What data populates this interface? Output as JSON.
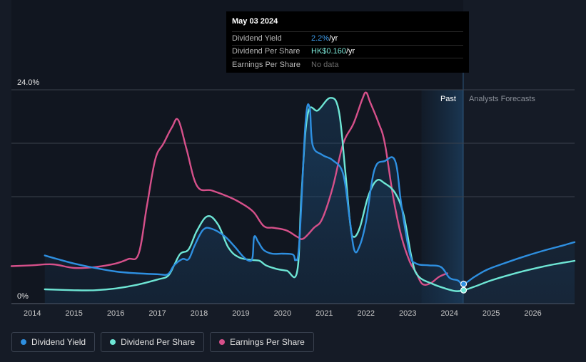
{
  "tooltip": {
    "date": "May 03 2024",
    "rows": [
      {
        "label": "Dividend Yield",
        "value": "2.2%",
        "unit": " /yr"
      },
      {
        "label": "Dividend Per Share",
        "value": "HK$0.160",
        "unit": " /yr"
      },
      {
        "label": "Earnings Per Share",
        "value": "No data",
        "unit": ""
      }
    ]
  },
  "labels": {
    "past": "Past",
    "forecast": "Analysts Forecasts"
  },
  "legend": [
    {
      "label": "Dividend Yield",
      "color": "#2e8fe0"
    },
    {
      "label": "Dividend Per Share",
      "color": "#6ee6d5"
    },
    {
      "label": "Earnings Per Share",
      "color": "#d6508a"
    }
  ],
  "chart_data": {
    "type": "line",
    "x_ticks": [
      "2014",
      "2015",
      "2016",
      "2017",
      "2018",
      "2019",
      "2020",
      "2021",
      "2022",
      "2023",
      "2024",
      "2025",
      "2026"
    ],
    "y_ticks": [
      "24.0%",
      "0%"
    ],
    "ylim": [
      0,
      24
    ],
    "xlim": [
      2013.5,
      2027
    ],
    "past_forecast_boundary": 2024.33,
    "past_region_start": 2023.33,
    "series": [
      {
        "name": "Dividend Yield",
        "color": "#2e8fe0",
        "points": [
          [
            2014.3,
            5.4
          ],
          [
            2014.6,
            5.0
          ],
          [
            2015.0,
            4.5
          ],
          [
            2015.5,
            4.0
          ],
          [
            2016.0,
            3.6
          ],
          [
            2016.5,
            3.4
          ],
          [
            2017.0,
            3.3
          ],
          [
            2017.25,
            3.3
          ],
          [
            2017.4,
            4.3
          ],
          [
            2017.6,
            5.0
          ],
          [
            2017.75,
            5.0
          ],
          [
            2017.9,
            6.6
          ],
          [
            2018.1,
            8.3
          ],
          [
            2018.3,
            8.4
          ],
          [
            2018.6,
            7.6
          ],
          [
            2018.85,
            6.4
          ],
          [
            2019.05,
            5.3
          ],
          [
            2019.2,
            4.8
          ],
          [
            2019.28,
            5.2
          ],
          [
            2019.32,
            7.5
          ],
          [
            2019.42,
            6.9
          ],
          [
            2019.55,
            6.0
          ],
          [
            2019.75,
            5.6
          ],
          [
            2020.0,
            5.6
          ],
          [
            2020.25,
            5.5
          ],
          [
            2020.31,
            4.9
          ],
          [
            2020.4,
            6.8
          ],
          [
            2020.55,
            20.3
          ],
          [
            2020.65,
            22.0
          ],
          [
            2020.72,
            17.8
          ],
          [
            2020.95,
            16.7
          ],
          [
            2021.2,
            16.1
          ],
          [
            2021.45,
            14.6
          ],
          [
            2021.6,
            9.8
          ],
          [
            2021.72,
            6.0
          ],
          [
            2021.85,
            6.5
          ],
          [
            2022.0,
            9.2
          ],
          [
            2022.2,
            15.0
          ],
          [
            2022.45,
            16.0
          ],
          [
            2022.7,
            16.0
          ],
          [
            2022.85,
            11.0
          ],
          [
            2023.05,
            5.6
          ],
          [
            2023.2,
            4.5
          ],
          [
            2023.5,
            4.3
          ],
          [
            2023.8,
            4.1
          ],
          [
            2024.0,
            2.9
          ],
          [
            2024.2,
            2.6
          ],
          [
            2024.34,
            2.2
          ],
          [
            2024.6,
            3.0
          ],
          [
            2024.9,
            3.8
          ],
          [
            2025.3,
            4.5
          ],
          [
            2025.8,
            5.3
          ],
          [
            2026.3,
            6.0
          ],
          [
            2026.7,
            6.5
          ],
          [
            2027.0,
            6.9
          ]
        ]
      },
      {
        "name": "Dividend Per Share",
        "color": "#6ee6d5",
        "points": [
          [
            2014.3,
            1.6
          ],
          [
            2015.0,
            1.5
          ],
          [
            2015.5,
            1.5
          ],
          [
            2016.0,
            1.7
          ],
          [
            2016.5,
            2.1
          ],
          [
            2017.0,
            2.7
          ],
          [
            2017.25,
            3.1
          ],
          [
            2017.4,
            4.3
          ],
          [
            2017.55,
            5.6
          ],
          [
            2017.75,
            6.1
          ],
          [
            2017.95,
            8.2
          ],
          [
            2018.2,
            9.8
          ],
          [
            2018.45,
            8.9
          ],
          [
            2018.7,
            6.3
          ],
          [
            2018.95,
            5.2
          ],
          [
            2019.25,
            4.9
          ],
          [
            2019.45,
            4.8
          ],
          [
            2019.6,
            4.3
          ],
          [
            2019.85,
            3.9
          ],
          [
            2020.1,
            3.7
          ],
          [
            2020.35,
            3.6
          ],
          [
            2020.45,
            12.0
          ],
          [
            2020.6,
            21.2
          ],
          [
            2020.85,
            21.7
          ],
          [
            2021.15,
            23.1
          ],
          [
            2021.35,
            21.6
          ],
          [
            2021.5,
            15.0
          ],
          [
            2021.62,
            9.0
          ],
          [
            2021.7,
            7.5
          ],
          [
            2021.85,
            8.5
          ],
          [
            2022.05,
            12.0
          ],
          [
            2022.25,
            13.8
          ],
          [
            2022.45,
            13.5
          ],
          [
            2022.7,
            12.4
          ],
          [
            2022.9,
            10.0
          ],
          [
            2023.1,
            5.0
          ],
          [
            2023.25,
            3.1
          ],
          [
            2023.6,
            2.2
          ],
          [
            2023.9,
            1.7
          ],
          [
            2024.15,
            1.4
          ],
          [
            2024.34,
            1.5
          ],
          [
            2024.6,
            1.9
          ],
          [
            2025.0,
            2.6
          ],
          [
            2025.5,
            3.3
          ],
          [
            2026.0,
            3.9
          ],
          [
            2026.5,
            4.4
          ],
          [
            2027.0,
            4.8
          ]
        ]
      },
      {
        "name": "Earnings Per Share",
        "color": "#d6508a",
        "points": [
          [
            2013.5,
            4.2
          ],
          [
            2014.0,
            4.3
          ],
          [
            2014.5,
            4.4
          ],
          [
            2015.0,
            4.0
          ],
          [
            2015.5,
            4.1
          ],
          [
            2016.0,
            4.5
          ],
          [
            2016.3,
            5.0
          ],
          [
            2016.55,
            5.6
          ],
          [
            2016.75,
            11.0
          ],
          [
            2016.95,
            16.2
          ],
          [
            2017.15,
            18.0
          ],
          [
            2017.35,
            19.8
          ],
          [
            2017.5,
            20.6
          ],
          [
            2017.7,
            17.3
          ],
          [
            2017.95,
            13.2
          ],
          [
            2018.3,
            12.7
          ],
          [
            2018.7,
            12.0
          ],
          [
            2019.0,
            11.3
          ],
          [
            2019.3,
            10.3
          ],
          [
            2019.55,
            8.7
          ],
          [
            2019.8,
            8.5
          ],
          [
            2020.1,
            8.2
          ],
          [
            2020.35,
            7.5
          ],
          [
            2020.5,
            7.3
          ],
          [
            2020.75,
            8.5
          ],
          [
            2020.95,
            9.5
          ],
          [
            2021.2,
            13.0
          ],
          [
            2021.45,
            17.9
          ],
          [
            2021.7,
            20.2
          ],
          [
            2021.9,
            22.8
          ],
          [
            2022.0,
            23.7
          ],
          [
            2022.1,
            22.6
          ],
          [
            2022.3,
            20.3
          ],
          [
            2022.45,
            18.0
          ],
          [
            2022.65,
            12.0
          ],
          [
            2022.85,
            7.5
          ],
          [
            2023.05,
            4.7
          ],
          [
            2023.2,
            3.5
          ],
          [
            2023.35,
            2.2
          ],
          [
            2023.55,
            2.3
          ],
          [
            2023.75,
            3.0
          ],
          [
            2023.95,
            3.4
          ]
        ]
      }
    ],
    "markers": [
      {
        "series": "Dividend Yield",
        "x": 2024.34,
        "y": 2.2
      },
      {
        "series": "Dividend Per Share",
        "x": 2024.34,
        "y": 1.5
      }
    ]
  }
}
